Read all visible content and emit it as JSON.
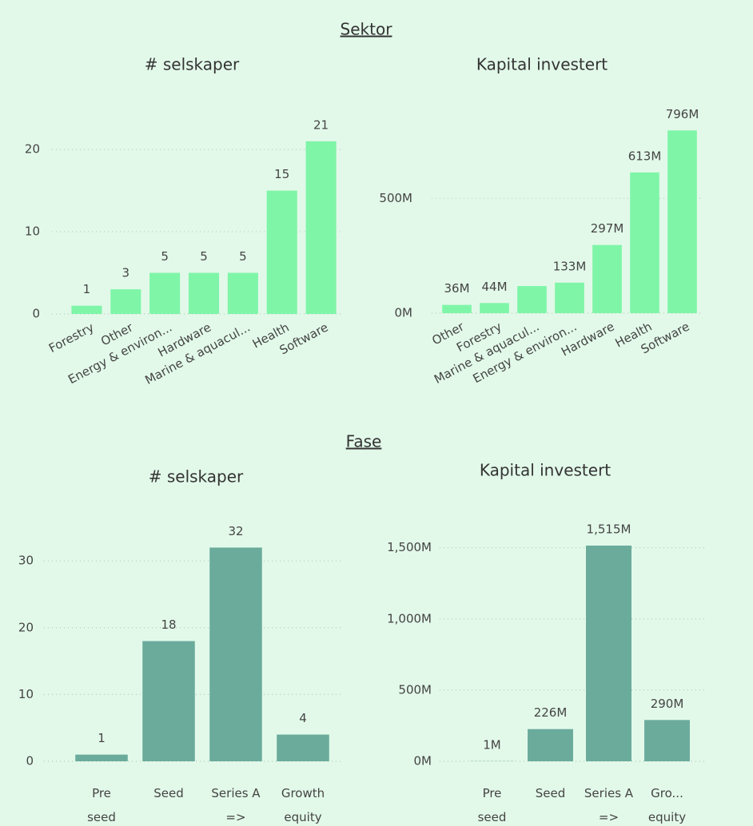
{
  "sections": [
    "Sektor",
    "Fase"
  ],
  "chart_data": [
    {
      "type": "bar",
      "title": "# selskaper",
      "categories": [
        "Forestry",
        "Other",
        "Energy & environ...",
        "Hardware",
        "Marine & aquacul...",
        "Health",
        "Software"
      ],
      "values": [
        1,
        3,
        5,
        5,
        5,
        15,
        21
      ],
      "color": "#7ff5a8",
      "ylim": [
        0,
        24
      ],
      "yticks": [
        0,
        10,
        20
      ],
      "grid": true
    },
    {
      "type": "bar",
      "title": "Kapital investert",
      "categories": [
        "Other",
        "Forestry",
        "Marine & aquacul...",
        "Energy & environ...",
        "Hardware",
        "Health",
        "Software"
      ],
      "values": [
        36,
        44,
        118,
        133,
        297,
        613,
        796
      ],
      "value_labels": [
        "36M",
        "44M",
        null,
        "133M",
        "297M",
        "613M",
        "796M"
      ],
      "color": "#7ff5a8",
      "ylim": [
        0,
        870
      ],
      "yticks": [
        {
          "value": 0,
          "label": "0M"
        },
        {
          "value": 500,
          "label": "500M"
        }
      ],
      "grid": true
    },
    {
      "type": "bar",
      "title": "# selskaper",
      "categories": [
        "Pre seed",
        "Seed",
        "Series A =>",
        "Growth equity"
      ],
      "values": [
        1,
        18,
        32,
        4
      ],
      "color": "#6aab9c",
      "ylim": [
        0,
        36
      ],
      "yticks": [
        0,
        10,
        20,
        30
      ],
      "grid": true
    },
    {
      "type": "bar",
      "title": "Kapital investert",
      "categories": [
        "Pre seed",
        "Seed",
        "Series A =>",
        "Gro... equity"
      ],
      "values": [
        1,
        226,
        1515,
        290
      ],
      "value_labels": [
        "1M",
        "226M",
        "1,515M",
        "290M"
      ],
      "color": "#6aab9c",
      "ylim": [
        0,
        1700
      ],
      "yticks": [
        {
          "value": 0,
          "label": "0M"
        },
        {
          "value": 500,
          "label": "500M"
        },
        {
          "value": 1000,
          "label": "1,000M"
        },
        {
          "value": 1500,
          "label": "1,500M"
        }
      ],
      "grid": true
    }
  ]
}
